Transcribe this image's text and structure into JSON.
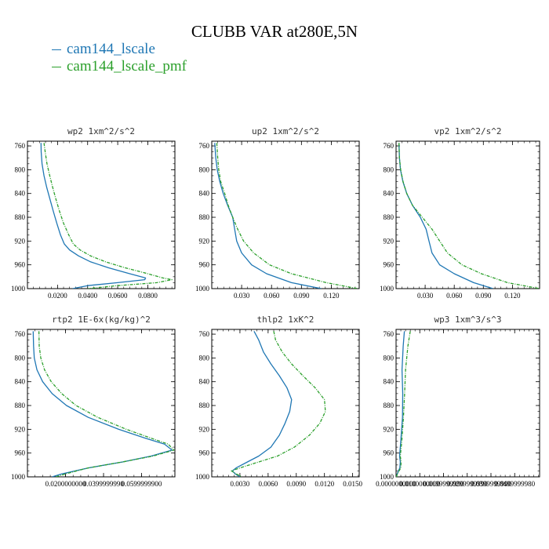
{
  "figure": {
    "title": "CLUBB VAR at280E,5N",
    "series": [
      {
        "name": "cam144_lscale",
        "color": "#1f77b4"
      },
      {
        "name": "cam144_lscale_pmf",
        "color": "#2ca02c"
      }
    ]
  },
  "chart_data": [
    {
      "type": "line",
      "title": "wp2   1xm^2/s^2",
      "xlim": [
        0.0,
        0.098
      ],
      "ylim": [
        1000,
        752
      ],
      "xticks": [
        "0.0200",
        "0.0400",
        "0.0600",
        "0.0800"
      ],
      "xtick_values": [
        0.02,
        0.04,
        0.06,
        0.08
      ],
      "yticks": [
        "760",
        "800",
        "840",
        "880",
        "920",
        "960",
        "1000"
      ],
      "ytick_values": [
        760,
        800,
        840,
        880,
        920,
        960,
        1000
      ],
      "y": [
        755,
        770,
        790,
        810,
        830,
        850,
        870,
        890,
        910,
        925,
        935,
        945,
        955,
        965,
        975,
        982,
        985,
        990,
        995,
        1000
      ],
      "series": [
        {
          "name": "cam144_lscale",
          "x": [
            0.009,
            0.0091,
            0.0097,
            0.011,
            0.0128,
            0.015,
            0.0172,
            0.0195,
            0.022,
            0.0245,
            0.028,
            0.034,
            0.042,
            0.054,
            0.068,
            0.0785,
            0.078,
            0.06,
            0.04,
            0.03
          ]
        },
        {
          "name": "cam144_lscale_pmf",
          "x": [
            0.011,
            0.0118,
            0.013,
            0.0148,
            0.0168,
            0.019,
            0.0213,
            0.024,
            0.0275,
            0.0305,
            0.035,
            0.042,
            0.052,
            0.065,
            0.08,
            0.09,
            0.096,
            0.086,
            0.06,
            0.04
          ]
        }
      ]
    },
    {
      "type": "line",
      "title": "up2   1xm^2/s^2",
      "xlim": [
        0.0,
        0.148
      ],
      "ylim": [
        1000,
        752
      ],
      "xticks": [
        "0.030",
        "0.060",
        "0.090",
        "0.120"
      ],
      "xtick_values": [
        0.03,
        0.06,
        0.09,
        0.12
      ],
      "yticks": [
        "760",
        "800",
        "840",
        "880",
        "920",
        "960",
        "1000"
      ],
      "ytick_values": [
        760,
        800,
        840,
        880,
        920,
        960,
        1000
      ],
      "y": [
        755,
        780,
        800,
        820,
        840,
        860,
        880,
        900,
        920,
        940,
        960,
        975,
        990,
        1000
      ],
      "series": [
        {
          "name": "cam144_lscale",
          "x": [
            0.003,
            0.004,
            0.0055,
            0.008,
            0.0115,
            0.016,
            0.021,
            0.023,
            0.025,
            0.03,
            0.04,
            0.055,
            0.08,
            0.11
          ]
        },
        {
          "name": "cam144_lscale_pmf",
          "x": [
            0.005,
            0.006,
            0.007,
            0.009,
            0.013,
            0.0165,
            0.021,
            0.026,
            0.032,
            0.042,
            0.058,
            0.08,
            0.115,
            0.146
          ]
        }
      ]
    },
    {
      "type": "line",
      "title": "vp2   1xm^2/s^2",
      "xlim": [
        0.0,
        0.148
      ],
      "ylim": [
        1000,
        752
      ],
      "xticks": [
        "0.030",
        "0.060",
        "0.090",
        "0.120"
      ],
      "xtick_values": [
        0.03,
        0.06,
        0.09,
        0.12
      ],
      "yticks": [
        "760",
        "800",
        "840",
        "880",
        "920",
        "960",
        "1000"
      ],
      "ytick_values": [
        760,
        800,
        840,
        880,
        920,
        960,
        1000
      ],
      "y": [
        755,
        780,
        800,
        820,
        840,
        860,
        880,
        900,
        920,
        940,
        960,
        975,
        990,
        1000
      ],
      "series": [
        {
          "name": "cam144_lscale",
          "x": [
            0.003,
            0.0035,
            0.0045,
            0.007,
            0.011,
            0.017,
            0.025,
            0.031,
            0.034,
            0.037,
            0.045,
            0.06,
            0.08,
            0.1
          ]
        },
        {
          "name": "cam144_lscale_pmf",
          "x": [
            0.003,
            0.0035,
            0.0048,
            0.0072,
            0.011,
            0.017,
            0.027,
            0.037,
            0.045,
            0.053,
            0.068,
            0.088,
            0.115,
            0.148
          ]
        }
      ]
    },
    {
      "type": "line",
      "title": "rtp2   1E-6x(kg/kg)^2",
      "xlim": [
        0.0,
        0.0775
      ],
      "ylim": [
        1000,
        752
      ],
      "xticks": [
        "0.0200000000",
        "0.0399999990",
        "0.0599999900"
      ],
      "xtick_values": [
        0.02,
        0.04,
        0.06
      ],
      "yticks": [
        "760",
        "800",
        "840",
        "880",
        "920",
        "960",
        "1000"
      ],
      "ytick_values": [
        760,
        800,
        840,
        880,
        920,
        960,
        1000
      ],
      "y": [
        755,
        780,
        800,
        820,
        840,
        860,
        880,
        900,
        920,
        935,
        945,
        955,
        965,
        975,
        985,
        995,
        1000
      ],
      "series": [
        {
          "name": "cam144_lscale",
          "x": [
            0.003,
            0.0032,
            0.0036,
            0.005,
            0.008,
            0.013,
            0.0205,
            0.032,
            0.048,
            0.062,
            0.072,
            0.076,
            0.065,
            0.05,
            0.032,
            0.018,
            0.013
          ]
        },
        {
          "name": "cam144_lscale_pmf",
          "x": [
            0.006,
            0.0062,
            0.007,
            0.009,
            0.0125,
            0.018,
            0.0255,
            0.037,
            0.052,
            0.065,
            0.074,
            0.077,
            0.066,
            0.05,
            0.032,
            0.02,
            0.015
          ]
        }
      ]
    },
    {
      "type": "line",
      "title": "thlp2   1xK^2",
      "xlim": [
        0.0,
        0.0157
      ],
      "ylim": [
        1000,
        752
      ],
      "xticks": [
        "0.0030",
        "0.0060",
        "0.0090",
        "0.0120",
        "0.0150"
      ],
      "xtick_values": [
        0.003,
        0.006,
        0.009,
        0.012,
        0.015
      ],
      "yticks": [
        "760",
        "800",
        "840",
        "880",
        "920",
        "960",
        "1000"
      ],
      "ytick_values": [
        760,
        800,
        840,
        880,
        920,
        960,
        1000
      ],
      "y": [
        755,
        770,
        790,
        810,
        830,
        850,
        870,
        890,
        910,
        930,
        950,
        965,
        975,
        985,
        990,
        995,
        1000
      ],
      "series": [
        {
          "name": "cam144_lscale",
          "x": [
            0.0045,
            0.005,
            0.0055,
            0.0063,
            0.0072,
            0.008,
            0.0085,
            0.0083,
            0.0078,
            0.0072,
            0.0063,
            0.005,
            0.0038,
            0.0026,
            0.0022,
            0.0025,
            0.003
          ]
        },
        {
          "name": "cam144_lscale_pmf",
          "x": [
            0.0066,
            0.0068,
            0.0075,
            0.0085,
            0.0097,
            0.011,
            0.012,
            0.0121,
            0.0115,
            0.0104,
            0.0088,
            0.007,
            0.005,
            0.003,
            0.0021,
            0.0026,
            0.0032
          ]
        }
      ]
    },
    {
      "type": "line",
      "title": "wp3   1xm^3/s^3",
      "xlim": [
        0.0,
        0.0605
      ],
      "ylim": [
        1000,
        752
      ],
      "xticks": [
        "0.0000000000",
        "0.0100000000",
        "0.0199999990",
        "0.0299999990",
        "0.0399999990",
        "0.0499999980"
      ],
      "xtick_values": [
        0.0,
        0.01,
        0.02,
        0.03,
        0.04,
        0.05
      ],
      "yticks": [
        "760",
        "800",
        "840",
        "880",
        "920",
        "960",
        "1000"
      ],
      "ytick_values": [
        760,
        800,
        840,
        880,
        920,
        960,
        1000
      ],
      "y": [
        755,
        780,
        820,
        860,
        900,
        940,
        965,
        975,
        985,
        992,
        997,
        1000
      ],
      "series": [
        {
          "name": "cam144_lscale",
          "x": [
            0.0035,
            0.003,
            0.0025,
            0.0028,
            0.0027,
            0.002,
            0.0015,
            0.0018,
            0.0016,
            0.0008,
            0.0003,
            0.0002
          ]
        },
        {
          "name": "cam144_lscale_pmf",
          "x": [
            0.006,
            0.005,
            0.004,
            0.0036,
            0.0031,
            0.0024,
            0.0018,
            0.0021,
            0.002,
            0.001,
            0.0004,
            0.0002
          ]
        }
      ]
    }
  ]
}
